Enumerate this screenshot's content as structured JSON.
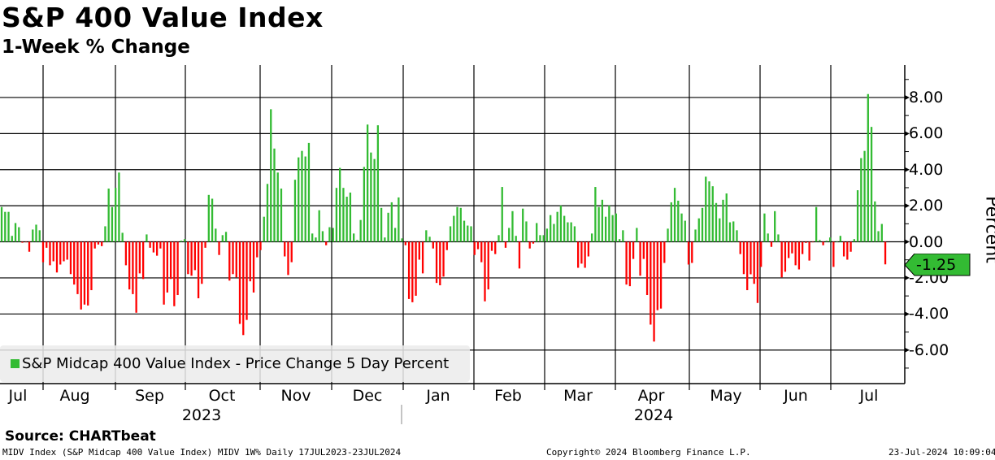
{
  "header": {
    "title": "S&P 400 Value Index",
    "subtitle": "1-Week % Change"
  },
  "chart_data": {
    "type": "bar",
    "title": "S&P 400 Value Index",
    "subtitle": "1-Week % Change",
    "ylabel": "Percent",
    "xlabel": "",
    "ylim": [
      -7.86,
      9.8
    ],
    "yticks": [
      "8.00",
      "6.00",
      "4.00",
      "2.00",
      "0.00",
      "-2.00",
      "-4.00",
      "-6.00"
    ],
    "ytick_values": [
      8,
      6,
      4,
      2,
      0,
      -2,
      -4,
      -6
    ],
    "x_month_labels": [
      "Jul",
      "Aug",
      "Sep",
      "Oct",
      "Nov",
      "Dec",
      "Jan",
      "Feb",
      "Mar",
      "Apr",
      "May",
      "Jun",
      "Jul"
    ],
    "x_year_labels": [
      "2023",
      "2024"
    ],
    "date_range": "17JUL2023-23JUL2024",
    "grid": true,
    "legend": {
      "position": "bottom-left",
      "label": "S&P Midcap 400 Value Index - Price Change 5 Day Percent"
    },
    "last_value": "-1.25",
    "colors": {
      "positive": "#33bb33",
      "negative": "#ff0000",
      "tag": "#33bb33"
    },
    "series": [
      {
        "name": "S&P Midcap 400 Value Index - Price Change 5 Day Percent",
        "values": [
          1.93,
          1.66,
          1.66,
          0.33,
          1.04,
          0.81,
          -0.05,
          -0.02,
          -0.55,
          0.68,
          0.95,
          0.64,
          -1.13,
          -0.33,
          -1.3,
          -1.08,
          -1.7,
          -1.26,
          -1.08,
          -0.99,
          -1.79,
          -2.37,
          -2.9,
          -3.75,
          -3.48,
          -3.53,
          -2.68,
          -0.37,
          -0.15,
          -0.24,
          0.86,
          2.95,
          1.93,
          2.99,
          3.84,
          0.5,
          -1.3,
          -2.64,
          -2.9,
          -3.93,
          -1.75,
          -2.06,
          0.41,
          -0.33,
          -0.59,
          -0.77,
          -0.37,
          -3.48,
          -2.81,
          -2.06,
          -3.57,
          -2.95,
          0.06,
          0.15,
          -1.79,
          -1.88,
          -1.57,
          -3.13,
          -2.33,
          -0.33,
          2.6,
          2.39,
          0.73,
          -0.73,
          0.37,
          0.55,
          -2.15,
          -1.79,
          -1.97,
          -4.55,
          -5.17,
          -4.33,
          -2.19,
          -2.81,
          -0.86,
          -0.46,
          1.39,
          3.21,
          7.35,
          5.17,
          3.84,
          2.95,
          -0.81,
          -1.84,
          -1.13,
          3.44,
          4.68,
          5.04,
          4.73,
          5.48,
          0.46,
          0.24,
          1.75,
          0.59,
          -0.19,
          0.81,
          0.77,
          2.99,
          4.1,
          2.99,
          2.5,
          2.73,
          0.46,
          0.1,
          1.21,
          4.15,
          6.5,
          4.95,
          4.59,
          6.46,
          1.88,
          0.24,
          1.61,
          2.19,
          0.77,
          2.46,
          0.19,
          -0.19,
          -3.17,
          -3.35,
          -2.99,
          -0.99,
          -1.75,
          0.64,
          0.28,
          -0.37,
          -2.28,
          -2.41,
          -1.93,
          -0.46,
          0.86,
          1.44,
          1.93,
          1.88,
          1.17,
          0.9,
          0.86,
          -0.73,
          -0.41,
          -1.13,
          -3.3,
          -2.64,
          -0.5,
          -0.68,
          0.37,
          3.04,
          -0.33,
          0.77,
          1.7,
          0.33,
          -1.48,
          1.84,
          1.13,
          -0.37,
          -0.1,
          1.04,
          0.37,
          0.37,
          0.73,
          1.48,
          0.99,
          1.66,
          2.01,
          1.44,
          1.08,
          1.08,
          0.86,
          -1.44,
          -1.21,
          -1.44,
          -0.81,
          0.46,
          3.04,
          1.93,
          2.33,
          1.39,
          2.01,
          1.48,
          1.57,
          0.15,
          0.64,
          -2.37,
          -2.46,
          -0.95,
          0.77,
          -1.88,
          -0.95,
          -2.95,
          -4.59,
          -5.53,
          -3.79,
          -3.7,
          -1.17,
          0.73,
          2.19,
          2.99,
          2.28,
          1.57,
          1.17,
          -1.26,
          -1.17,
          0.68,
          1.3,
          1.88,
          3.61,
          3.35,
          3.08,
          2.15,
          1.3,
          2.33,
          2.68,
          1.08,
          1.13,
          0.64,
          -0.68,
          -1.79,
          -2.68,
          -1.8,
          -2.33,
          -3.39,
          -1.39,
          1.57,
          0.46,
          -0.28,
          1.7,
          0.41,
          -1.97,
          -1.66,
          -0.9,
          -0.64,
          -1.3,
          -1.53,
          -0.68,
          -0.06,
          -1.04,
          -0.01,
          1.93,
          0.1,
          -0.19,
          0.06,
          0.24,
          -1.39,
          0.03,
          0.33,
          -0.81,
          -0.99,
          -0.55,
          0.15,
          2.86,
          4.64,
          5.04,
          8.19,
          6.37,
          2.24,
          0.59,
          0.99,
          -1.25
        ]
      }
    ]
  },
  "footer": {
    "source": "Source: CHARTbeat",
    "ticker_info": "MIDV Index (S&P Midcap 400 Value Index) MIDV 1W%  Daily 17JUL2023-23JUL2024",
    "copyright": "Copyright© 2024 Bloomberg Finance L.P.",
    "timestamp": "23-Jul-2024 10:09:04"
  }
}
